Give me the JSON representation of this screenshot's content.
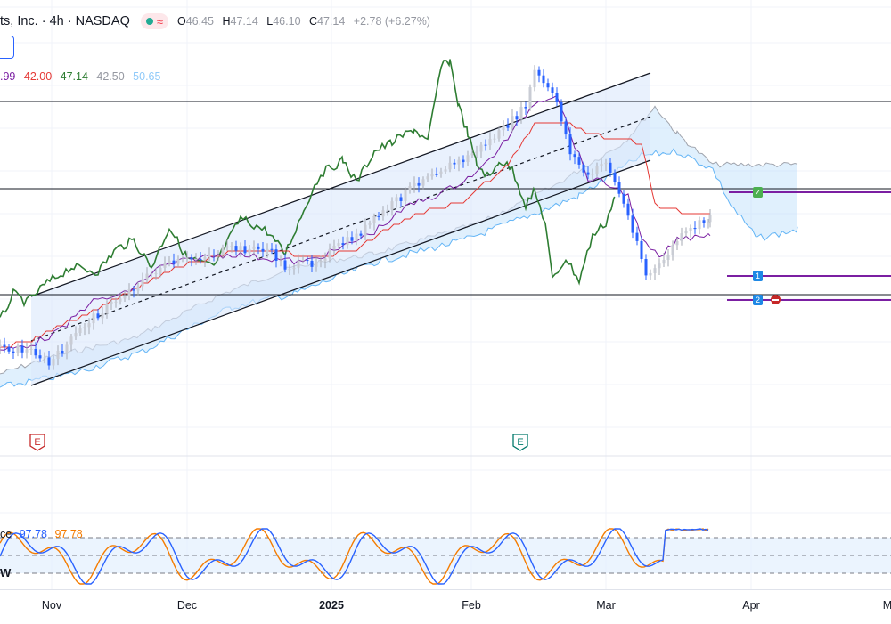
{
  "header": {
    "title": "ts, Inc. · 4h · NASDAQ",
    "ohlc": {
      "o_label": "O",
      "o": "46.45",
      "h_label": "H",
      "h": "47.14",
      "l_label": "L",
      "l": "46.10",
      "c_label": "C",
      "c": "47.14",
      "change": "+2.78 (+6.27%)"
    }
  },
  "ichimoku_values": [
    {
      "text": ".99",
      "color": "#7b1fa2"
    },
    {
      "text": "42.00",
      "color": "#e53935"
    },
    {
      "text": "47.14",
      "color": "#2e7d32"
    },
    {
      "text": "42.50",
      "color": "#9598a1"
    },
    {
      "text": "50.65",
      "color": "#90caf9"
    }
  ],
  "stoch_values": [
    {
      "text": "ce",
      "color": "#131722"
    },
    {
      "text": "97.78",
      "color": "#2962ff"
    },
    {
      "text": "97.78",
      "color": "#f57c00"
    }
  ],
  "stoch_watermark": "W",
  "earnings_markers": [
    {
      "label": "E",
      "color": "#c62828"
    },
    {
      "label": "E",
      "color": "#00796b"
    }
  ],
  "order_tags": [
    {
      "label": "✓",
      "color": "#4caf50"
    },
    {
      "label": "1",
      "color": "#1e88e5"
    },
    {
      "label": "2",
      "color": "#1e88e5"
    }
  ],
  "x_axis_labels": [
    {
      "text": "Nov",
      "bold": false
    },
    {
      "text": "Dec",
      "bold": false
    },
    {
      "text": "2025",
      "bold": true
    },
    {
      "text": "Feb",
      "bold": false
    },
    {
      "text": "Mar",
      "bold": false
    },
    {
      "text": "Apr",
      "bold": false
    },
    {
      "text": "M",
      "bold": false
    }
  ],
  "colors": {
    "candle_up": "#c9ccd4",
    "candle_down": "#2962ff",
    "tenkan": "#7b1fa2",
    "kijun": "#e53935",
    "chikou": "#2e7d32",
    "cloud_fill": "#bbdefb",
    "channel_fill": "#dbe8fb",
    "stoch_k": "#2962ff",
    "stoch_d": "#f57c00",
    "level_line": "#131722",
    "order_line": "#7b1fa2"
  }
}
